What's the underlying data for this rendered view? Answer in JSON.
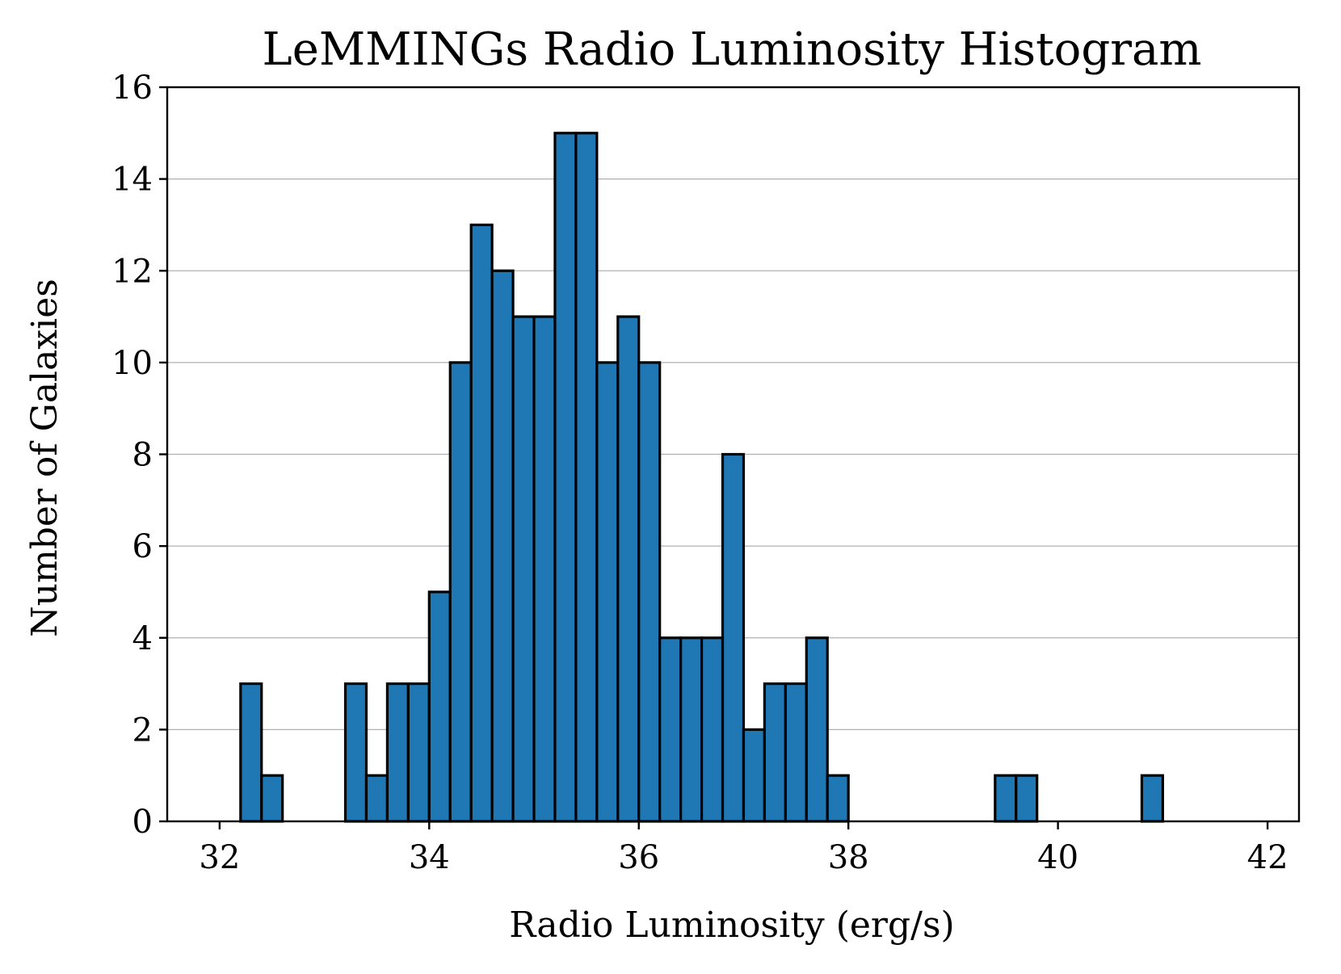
{
  "chart_data": {
    "type": "bar",
    "title": "LeMMINGs Radio Luminosity Histogram",
    "xlabel": "Radio Luminosity (erg/s)",
    "ylabel": "Number of Galaxies",
    "xlim": [
      31.5,
      42.3
    ],
    "ylim": [
      0,
      16
    ],
    "bin_start": 32.0,
    "bin_width": 0.2,
    "values": [
      0,
      3,
      1,
      0,
      0,
      0,
      3,
      1,
      3,
      3,
      5,
      10,
      13,
      12,
      11,
      11,
      15,
      15,
      10,
      11,
      10,
      4,
      4,
      4,
      8,
      2,
      3,
      3,
      4,
      1,
      0,
      0,
      0,
      0,
      0,
      0,
      0,
      1,
      1,
      0,
      0,
      0,
      0,
      0,
      1,
      0,
      0,
      0,
      0
    ],
    "x_ticks": [
      32,
      34,
      36,
      38,
      40,
      42
    ],
    "y_ticks": [
      0,
      2,
      4,
      6,
      8,
      10,
      12,
      14,
      16
    ],
    "grid": "y-major",
    "legend": "none",
    "colors": {
      "bar_fill": "#1f77b4",
      "bar_edge": "#000000",
      "grid": "#b0b0b0",
      "axis": "#000000"
    }
  }
}
